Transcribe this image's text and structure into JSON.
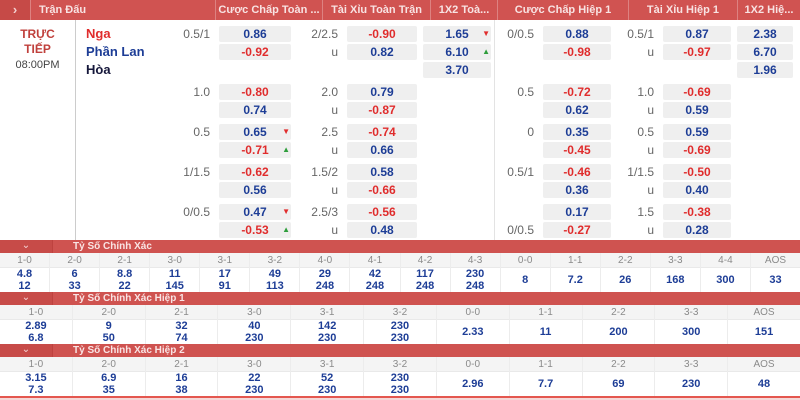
{
  "colors": {
    "header_red": "#d05351",
    "header_icon_red": "#c64a47",
    "section_red": "#cf5350",
    "section_icon_red": "#c74b48",
    "odds_blue": "#1d3d96",
    "odds_red": "#e02c2c",
    "up_arrow_green": "#2f9e3c",
    "down_arrow_red": "#e02c2c",
    "pill_bg": "#efefef",
    "live_red": "#c0403c"
  },
  "topbar": {
    "chevron_icon": "›",
    "columns": [
      "Trận Đấu",
      "Cược Chấp Toàn ...",
      "Tài Xỉu Toàn Trận",
      "1X2 Toà...",
      "Cược Chấp Hiệp 1",
      "Tài Xỉu Hiệp 1",
      "1X2 Hiệ..."
    ]
  },
  "match": {
    "status_lines": [
      "TRỰC",
      "TIẾP"
    ],
    "time": "08:00PM",
    "teams": [
      {
        "name": "Nga",
        "color": "red"
      },
      {
        "name": "Phần Lan",
        "color": "blue"
      },
      {
        "name": "Hòa",
        "color": "dark"
      }
    ]
  },
  "odds_groups": [
    {
      "ft_hdp": {
        "labels": [
          "0.5/1",
          ""
        ],
        "odds": [
          {
            "v": "0.86",
            "c": "blue"
          },
          {
            "v": "-0.92",
            "c": "red"
          }
        ]
      },
      "ft_ou": {
        "labels": [
          "2/2.5",
          "u"
        ],
        "odds": [
          {
            "v": "-0.90",
            "c": "red"
          },
          {
            "v": "0.82",
            "c": "blue"
          }
        ]
      },
      "ft_1x2": {
        "odds": [
          {
            "v": "1.65",
            "c": "blue",
            "arrow": "down"
          },
          {
            "v": "6.10",
            "c": "blue",
            "arrow": "up"
          },
          {
            "v": "3.70",
            "c": "blue"
          }
        ]
      },
      "h1_hdp": {
        "labels": [
          "0/0.5",
          ""
        ],
        "odds": [
          {
            "v": "0.88",
            "c": "blue"
          },
          {
            "v": "-0.98",
            "c": "red"
          }
        ]
      },
      "h1_ou": {
        "labels": [
          "0.5/1",
          "u"
        ],
        "odds": [
          {
            "v": "0.87",
            "c": "blue"
          },
          {
            "v": "-0.97",
            "c": "red"
          }
        ]
      },
      "h1_1x2": {
        "odds": [
          {
            "v": "2.38",
            "c": "blue"
          },
          {
            "v": "6.70",
            "c": "blue"
          },
          {
            "v": "1.96",
            "c": "blue"
          }
        ]
      }
    },
    {
      "ft_hdp": {
        "labels": [
          "1.0",
          ""
        ],
        "odds": [
          {
            "v": "-0.80",
            "c": "red"
          },
          {
            "v": "0.74",
            "c": "blue"
          }
        ]
      },
      "ft_ou": {
        "labels": [
          "2.0",
          "u"
        ],
        "odds": [
          {
            "v": "0.79",
            "c": "blue"
          },
          {
            "v": "-0.87",
            "c": "red"
          }
        ]
      },
      "ft_1x2": {
        "odds": []
      },
      "h1_hdp": {
        "labels": [
          "0.5",
          ""
        ],
        "odds": [
          {
            "v": "-0.72",
            "c": "red"
          },
          {
            "v": "0.62",
            "c": "blue"
          }
        ]
      },
      "h1_ou": {
        "labels": [
          "1.0",
          "u"
        ],
        "odds": [
          {
            "v": "-0.69",
            "c": "red"
          },
          {
            "v": "0.59",
            "c": "blue"
          }
        ]
      },
      "h1_1x2": {
        "odds": []
      }
    },
    {
      "ft_hdp": {
        "labels": [
          "0.5",
          ""
        ],
        "odds": [
          {
            "v": "0.65",
            "c": "blue",
            "arrow": "down"
          },
          {
            "v": "-0.71",
            "c": "red",
            "arrow": "up"
          }
        ]
      },
      "ft_ou": {
        "labels": [
          "2.5",
          "u"
        ],
        "odds": [
          {
            "v": "-0.74",
            "c": "red"
          },
          {
            "v": "0.66",
            "c": "blue"
          }
        ]
      },
      "ft_1x2": {
        "odds": []
      },
      "h1_hdp": {
        "labels": [
          "0",
          ""
        ],
        "odds": [
          {
            "v": "0.35",
            "c": "blue"
          },
          {
            "v": "-0.45",
            "c": "red"
          }
        ]
      },
      "h1_ou": {
        "labels": [
          "0.5",
          "u"
        ],
        "odds": [
          {
            "v": "0.59",
            "c": "blue"
          },
          {
            "v": "-0.69",
            "c": "red"
          }
        ]
      },
      "h1_1x2": {
        "odds": []
      }
    },
    {
      "ft_hdp": {
        "labels": [
          "1/1.5",
          ""
        ],
        "odds": [
          {
            "v": "-0.62",
            "c": "red"
          },
          {
            "v": "0.56",
            "c": "blue"
          }
        ]
      },
      "ft_ou": {
        "labels": [
          "1.5/2",
          "u"
        ],
        "odds": [
          {
            "v": "0.58",
            "c": "blue"
          },
          {
            "v": "-0.66",
            "c": "red"
          }
        ]
      },
      "ft_1x2": {
        "odds": []
      },
      "h1_hdp": {
        "labels": [
          "0.5/1",
          ""
        ],
        "odds": [
          {
            "v": "-0.46",
            "c": "red"
          },
          {
            "v": "0.36",
            "c": "blue"
          }
        ]
      },
      "h1_ou": {
        "labels": [
          "1/1.5",
          "u"
        ],
        "odds": [
          {
            "v": "-0.50",
            "c": "red"
          },
          {
            "v": "0.40",
            "c": "blue"
          }
        ]
      },
      "h1_1x2": {
        "odds": []
      }
    },
    {
      "ft_hdp": {
        "labels": [
          "0/0.5",
          ""
        ],
        "odds": [
          {
            "v": "0.47",
            "c": "blue",
            "arrow": "down"
          },
          {
            "v": "-0.53",
            "c": "red",
            "arrow": "up"
          }
        ]
      },
      "ft_ou": {
        "labels": [
          "2.5/3",
          "u"
        ],
        "odds": [
          {
            "v": "-0.56",
            "c": "red"
          },
          {
            "v": "0.48",
            "c": "blue"
          }
        ]
      },
      "ft_1x2": {
        "odds": []
      },
      "h1_hdp": {
        "labels": [
          "",
          "0/0.5"
        ],
        "odds": [
          {
            "v": "0.17",
            "c": "blue"
          },
          {
            "v": "-0.27",
            "c": "red"
          }
        ]
      },
      "h1_ou": {
        "labels": [
          "1.5",
          "u"
        ],
        "odds": [
          {
            "v": "-0.38",
            "c": "red"
          },
          {
            "v": "0.28",
            "c": "blue"
          }
        ]
      },
      "h1_1x2": {
        "odds": []
      }
    }
  ],
  "sections": [
    {
      "title": "Tỷ Số Chính Xác",
      "chevron_icon": "⌄",
      "scores": [
        {
          "label": "1-0",
          "values": [
            "4.8",
            "12"
          ]
        },
        {
          "label": "2-0",
          "values": [
            "6",
            "33"
          ]
        },
        {
          "label": "2-1",
          "values": [
            "8.8",
            "22"
          ]
        },
        {
          "label": "3-0",
          "values": [
            "11",
            "145"
          ]
        },
        {
          "label": "3-1",
          "values": [
            "17",
            "91"
          ]
        },
        {
          "label": "3-2",
          "values": [
            "49",
            "113"
          ]
        },
        {
          "label": "4-0",
          "values": [
            "29",
            "248"
          ]
        },
        {
          "label": "4-1",
          "values": [
            "42",
            "248"
          ]
        },
        {
          "label": "4-2",
          "values": [
            "117",
            "248"
          ]
        },
        {
          "label": "4-3",
          "values": [
            "230",
            "248"
          ]
        },
        {
          "label": "0-0",
          "values": [
            "8"
          ]
        },
        {
          "label": "1-1",
          "values": [
            "7.2"
          ]
        },
        {
          "label": "2-2",
          "values": [
            "26"
          ]
        },
        {
          "label": "3-3",
          "values": [
            "168"
          ]
        },
        {
          "label": "4-4",
          "values": [
            "300"
          ]
        },
        {
          "label": "AOS",
          "values": [
            "33"
          ]
        }
      ]
    },
    {
      "title": "Tỷ Số Chính Xác Hiệp 1",
      "chevron_icon": "⌄",
      "scores": [
        {
          "label": "1-0",
          "values": [
            "2.89",
            "6.8"
          ]
        },
        {
          "label": "2-0",
          "values": [
            "9",
            "50"
          ]
        },
        {
          "label": "2-1",
          "values": [
            "32",
            "74"
          ]
        },
        {
          "label": "3-0",
          "values": [
            "40",
            "230"
          ]
        },
        {
          "label": "3-1",
          "values": [
            "142",
            "230"
          ]
        },
        {
          "label": "3-2",
          "values": [
            "230",
            "230"
          ]
        },
        {
          "label": "0-0",
          "values": [
            "2.33"
          ]
        },
        {
          "label": "1-1",
          "values": [
            "11"
          ]
        },
        {
          "label": "2-2",
          "values": [
            "200"
          ]
        },
        {
          "label": "3-3",
          "values": [
            "300"
          ]
        },
        {
          "label": "AOS",
          "values": [
            "151"
          ]
        }
      ]
    },
    {
      "title": "Tỷ Số Chính Xác Hiệp 2",
      "chevron_icon": "⌄",
      "scores": [
        {
          "label": "1-0",
          "values": [
            "3.15",
            "7.3"
          ]
        },
        {
          "label": "2-0",
          "values": [
            "6.9",
            "35"
          ]
        },
        {
          "label": "2-1",
          "values": [
            "16",
            "38"
          ]
        },
        {
          "label": "3-0",
          "values": [
            "22",
            "230"
          ]
        },
        {
          "label": "3-1",
          "values": [
            "52",
            "230"
          ]
        },
        {
          "label": "3-2",
          "values": [
            "230",
            "230"
          ]
        },
        {
          "label": "0-0",
          "values": [
            "2.96"
          ]
        },
        {
          "label": "1-1",
          "values": [
            "7.7"
          ]
        },
        {
          "label": "2-2",
          "values": [
            "69"
          ]
        },
        {
          "label": "3-3",
          "values": [
            "230"
          ]
        },
        {
          "label": "AOS",
          "values": [
            "48"
          ]
        }
      ]
    }
  ]
}
